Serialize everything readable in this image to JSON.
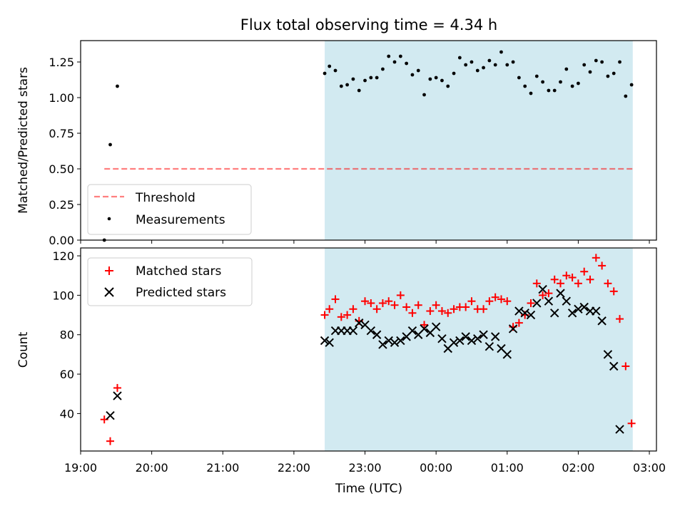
{
  "title": "Flux total observing time = 4.34 h",
  "colors": {
    "shade": "#add8e6",
    "threshold": "#ff0000",
    "measurements": "#000000",
    "matched": "#ff0000",
    "predicted": "#000000"
  },
  "chart_data": [
    {
      "type": "scatter",
      "ylabel": "Matched/Predicted stars",
      "ylim": [
        0,
        1.4
      ],
      "yticks": [
        "0.00",
        "0.25",
        "0.50",
        "0.75",
        "1.00",
        "1.25"
      ],
      "xlim": [
        "19:00",
        "03:06"
      ],
      "shaded_region": [
        "22:26",
        "02:46"
      ],
      "legend": {
        "location": "lower-left",
        "entries": [
          "Threshold",
          "Measurements"
        ]
      },
      "series": [
        {
          "name": "Threshold",
          "kind": "line",
          "x": [
            "19:20",
            "02:46"
          ],
          "values": [
            0.5,
            0.5
          ]
        },
        {
          "name": "Measurements",
          "kind": "points",
          "x": [
            "19:20",
            "19:25",
            "19:31",
            "22:26",
            "22:30",
            "22:35",
            "22:40",
            "22:45",
            "22:50",
            "22:55",
            "23:00",
            "23:05",
            "23:10",
            "23:15",
            "23:20",
            "23:25",
            "23:30",
            "23:35",
            "23:40",
            "23:45",
            "23:50",
            "23:55",
            "00:00",
            "00:05",
            "00:10",
            "00:15",
            "00:20",
            "00:25",
            "00:30",
            "00:35",
            "00:40",
            "00:45",
            "00:50",
            "00:55",
            "01:00",
            "01:05",
            "01:10",
            "01:15",
            "01:20",
            "01:25",
            "01:30",
            "01:35",
            "01:40",
            "01:45",
            "01:50",
            "01:55",
            "02:00",
            "02:05",
            "02:10",
            "02:15",
            "02:20",
            "02:25",
            "02:30",
            "02:35",
            "02:40",
            "02:45"
          ],
          "values": [
            0.0,
            0.67,
            1.08,
            1.17,
            1.22,
            1.19,
            1.08,
            1.09,
            1.13,
            1.05,
            1.12,
            1.14,
            1.14,
            1.2,
            1.29,
            1.25,
            1.29,
            1.24,
            1.16,
            1.19,
            1.02,
            1.13,
            1.14,
            1.12,
            1.08,
            1.17,
            1.28,
            1.23,
            1.25,
            1.19,
            1.21,
            1.26,
            1.23,
            1.32,
            1.23,
            1.25,
            1.14,
            1.08,
            1.03,
            1.15,
            1.11,
            1.05,
            1.05,
            1.11,
            1.2,
            1.08,
            1.1,
            1.23,
            1.18,
            1.26,
            1.25,
            1.15,
            1.17,
            1.25,
            1.01,
            1.09
          ]
        }
      ]
    },
    {
      "type": "scatter",
      "xlabel": "Time (UTC)",
      "ylabel": "Count",
      "ylim": [
        21,
        124
      ],
      "yticks": [
        "40",
        "60",
        "80",
        "100",
        "120"
      ],
      "xlim": [
        "19:00",
        "03:06"
      ],
      "xticks": [
        "19:00",
        "20:00",
        "21:00",
        "22:00",
        "23:00",
        "00:00",
        "01:00",
        "02:00",
        "03:00"
      ],
      "shaded_region": [
        "22:26",
        "02:46"
      ],
      "legend": {
        "location": "upper-left",
        "entries": [
          "Matched stars",
          "Predicted stars"
        ]
      },
      "x": [
        "19:20",
        "19:25",
        "19:31",
        "22:26",
        "22:30",
        "22:35",
        "22:40",
        "22:45",
        "22:50",
        "22:55",
        "23:00",
        "23:05",
        "23:10",
        "23:15",
        "23:20",
        "23:25",
        "23:30",
        "23:35",
        "23:40",
        "23:45",
        "23:50",
        "23:55",
        "00:00",
        "00:05",
        "00:10",
        "00:15",
        "00:20",
        "00:25",
        "00:30",
        "00:35",
        "00:40",
        "00:45",
        "00:50",
        "00:55",
        "01:00",
        "01:05",
        "01:10",
        "01:15",
        "01:20",
        "01:25",
        "01:30",
        "01:35",
        "01:40",
        "01:45",
        "01:50",
        "01:55",
        "02:00",
        "02:05",
        "02:10",
        "02:15",
        "02:20",
        "02:25",
        "02:30",
        "02:35",
        "02:40",
        "02:45"
      ],
      "series": [
        {
          "name": "Matched stars",
          "marker": "plus",
          "values": [
            37,
            26,
            53,
            90,
            93,
            98,
            89,
            90,
            93,
            87,
            97,
            96,
            93,
            96,
            97,
            95,
            100,
            94,
            91,
            95,
            85,
            92,
            95,
            92,
            91,
            93,
            94,
            94,
            97,
            93,
            93,
            97,
            99,
            98,
            97,
            84,
            86,
            90,
            96,
            106,
            100,
            101,
            108,
            106,
            110,
            109,
            106,
            112,
            108,
            119,
            115,
            106,
            102,
            88,
            64,
            35
          ]
        },
        {
          "name": "Predicted stars",
          "marker": "x",
          "values": [
            null,
            39,
            49,
            77,
            76,
            82,
            82,
            82,
            82,
            86,
            85,
            82,
            80,
            75,
            77,
            76,
            77,
            79,
            82,
            80,
            83,
            81,
            84,
            78,
            73,
            76,
            77,
            79,
            77,
            78,
            80,
            74,
            79,
            73,
            70,
            83,
            92,
            91,
            90,
            96,
            103,
            97,
            91,
            101,
            97,
            91,
            93,
            94,
            92,
            92,
            87,
            70,
            64,
            32,
            null,
            null
          ]
        }
      ]
    }
  ]
}
